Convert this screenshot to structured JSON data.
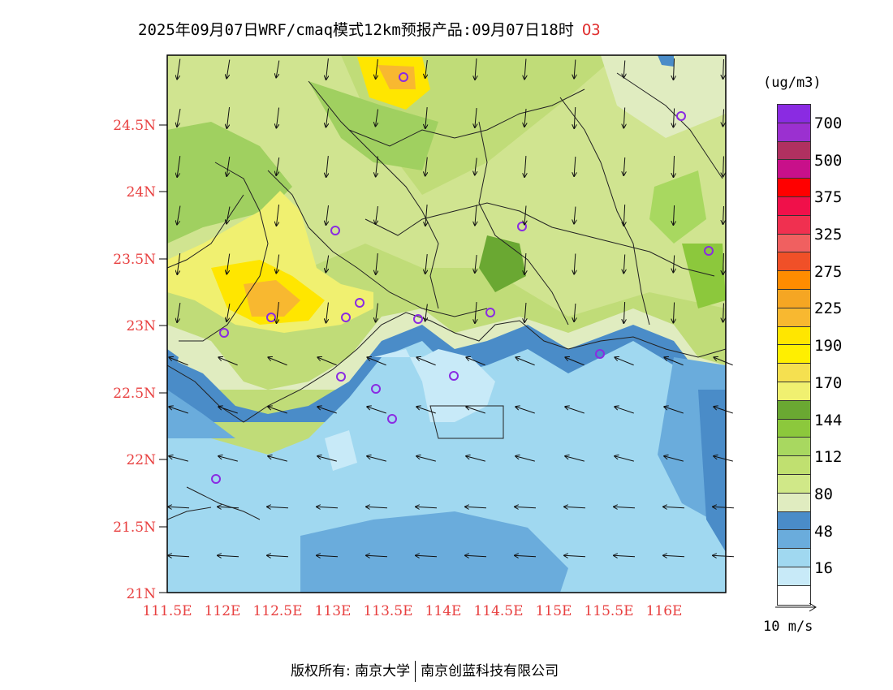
{
  "header": {
    "title": "2025年09月07日WRF/cmaq模式12km预报产品:09月07日18时",
    "species": "O3"
  },
  "map": {
    "lat_ticks": [
      "24.5N",
      "24N",
      "23.5N",
      "23N",
      "22.5N",
      "22N",
      "21.5N",
      "21N"
    ],
    "lon_ticks": [
      "111.5E",
      "112E",
      "112.5E",
      "113E",
      "113.5E",
      "114E",
      "114.5E",
      "115E",
      "115.5E",
      "116E"
    ],
    "lon_range": [
      111.5,
      116.6
    ],
    "lat_range": [
      21.0,
      25.0
    ]
  },
  "colorbar": {
    "unit": "(ug/m3)",
    "colors": [
      "#8a2be2",
      "#9b30d0",
      "#b03060",
      "#c8108a",
      "#ff0000",
      "#f0104a",
      "#f03050",
      "#f06060",
      "#f05028",
      "#ff8c00",
      "#f5a623",
      "#f8b830",
      "#ffe600",
      "#ffef00",
      "#f5e050",
      "#f0f070",
      "#6aa832",
      "#8cc83c",
      "#a8d860",
      "#c0e070",
      "#d0e888",
      "#e0ecc0",
      "#4a8cc8",
      "#6aacdc",
      "#a0d8f0",
      "#c8eaf8",
      "#ffffff"
    ],
    "labels": [
      "700",
      "500",
      "375",
      "325",
      "275",
      "225",
      "190",
      "170",
      "144",
      "112",
      "80",
      "48",
      "16"
    ]
  },
  "wind_reference": {
    "label": "10 m/s"
  },
  "footer": {
    "copyright": "版权所有: 南京大学",
    "partner": "南京创蓝科技有限公司"
  }
}
